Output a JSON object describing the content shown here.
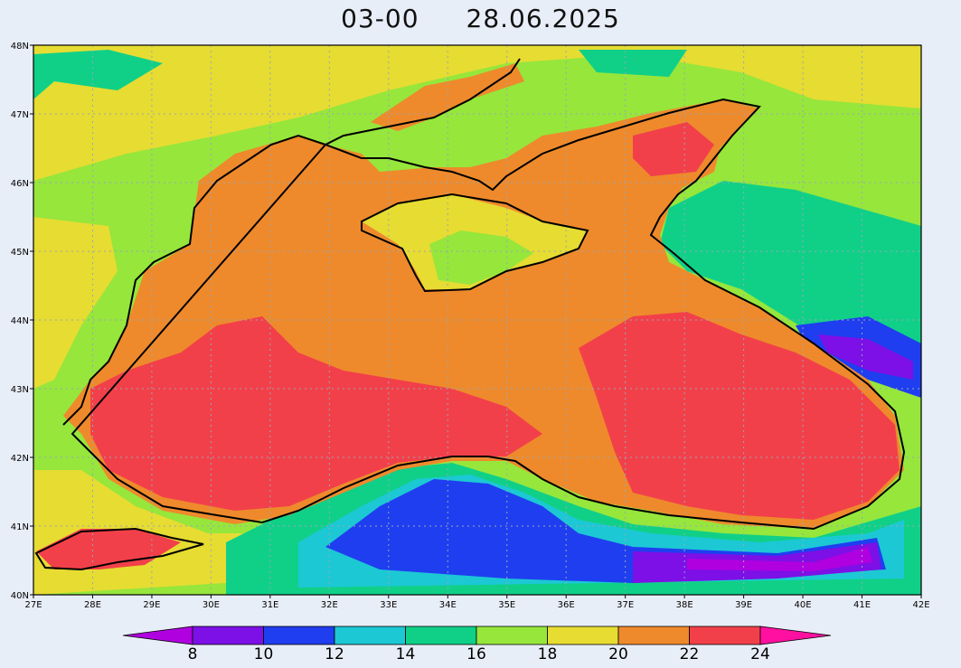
{
  "title": {
    "time": "03-00",
    "date": "28.06.2025"
  },
  "map": {
    "lat_labels": [
      "40N",
      "41N",
      "42N",
      "43N",
      "44N",
      "45N",
      "46N",
      "47N",
      "48N"
    ],
    "lon_labels": [
      "27E",
      "28E",
      "29E",
      "30E",
      "31E",
      "32E",
      "33E",
      "34E",
      "35E",
      "36E",
      "37E",
      "38E",
      "39E",
      "40E",
      "41E",
      "42E"
    ],
    "grid": "dotted"
  },
  "colorbar": {
    "levels": [
      "8",
      "10",
      "12",
      "14",
      "16",
      "18",
      "20",
      "22",
      "24"
    ],
    "colors": {
      "lt8": "#b000e0",
      "8_10": "#7c10e6",
      "10_12": "#1f3ef0",
      "12_14": "#1cc8d4",
      "14_16": "#10d088",
      "16_18": "#96e63c",
      "18_20": "#e6dc32",
      "20_22": "#ee8a2c",
      "22_24": "#f2404a",
      "gt24": "#ff10a0"
    }
  }
}
